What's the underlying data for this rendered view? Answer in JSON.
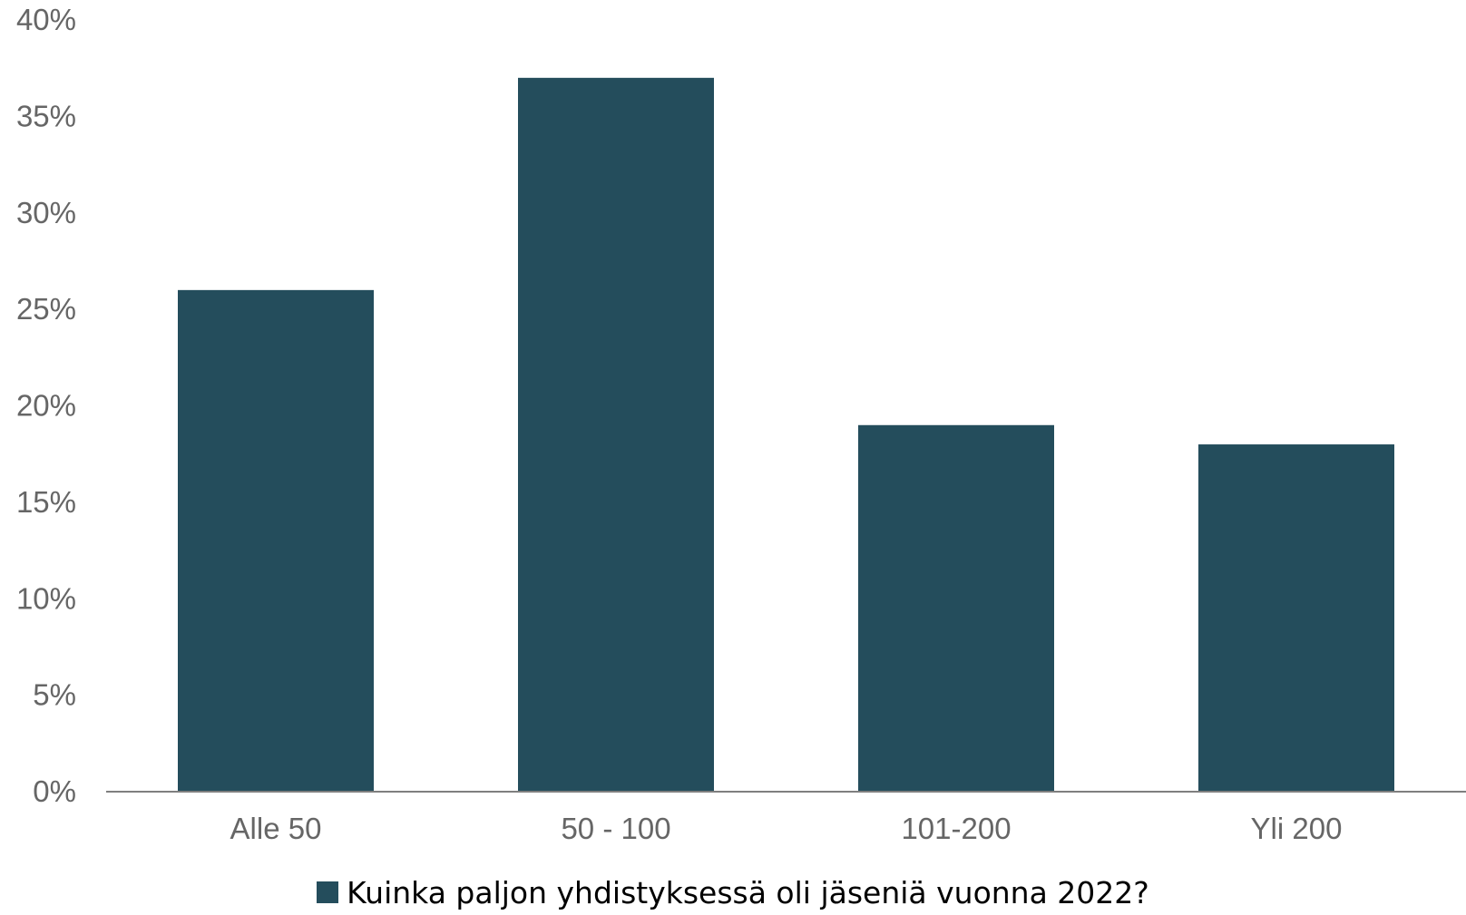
{
  "chart_data": {
    "type": "bar",
    "categories": [
      "Alle 50",
      "50 - 100",
      "101-200",
      "Yli 200"
    ],
    "series": [
      {
        "name": "Kuinka paljon yhdistyksessä oli jäseniä vuonna 2022?",
        "values": [
          26,
          37,
          19,
          18
        ]
      }
    ],
    "ylim": [
      0,
      40
    ],
    "yticks": [
      0,
      5,
      10,
      15,
      20,
      25,
      30,
      35,
      40
    ],
    "ytick_labels": [
      "0%",
      "5%",
      "10%",
      "15%",
      "20%",
      "25%",
      "30%",
      "35%",
      "40%"
    ],
    "grid": false,
    "legend_position": "bottom",
    "colors": {
      "bar": "#244d5c",
      "axis": "#7f7f7f",
      "tick_text": "#666666"
    }
  }
}
